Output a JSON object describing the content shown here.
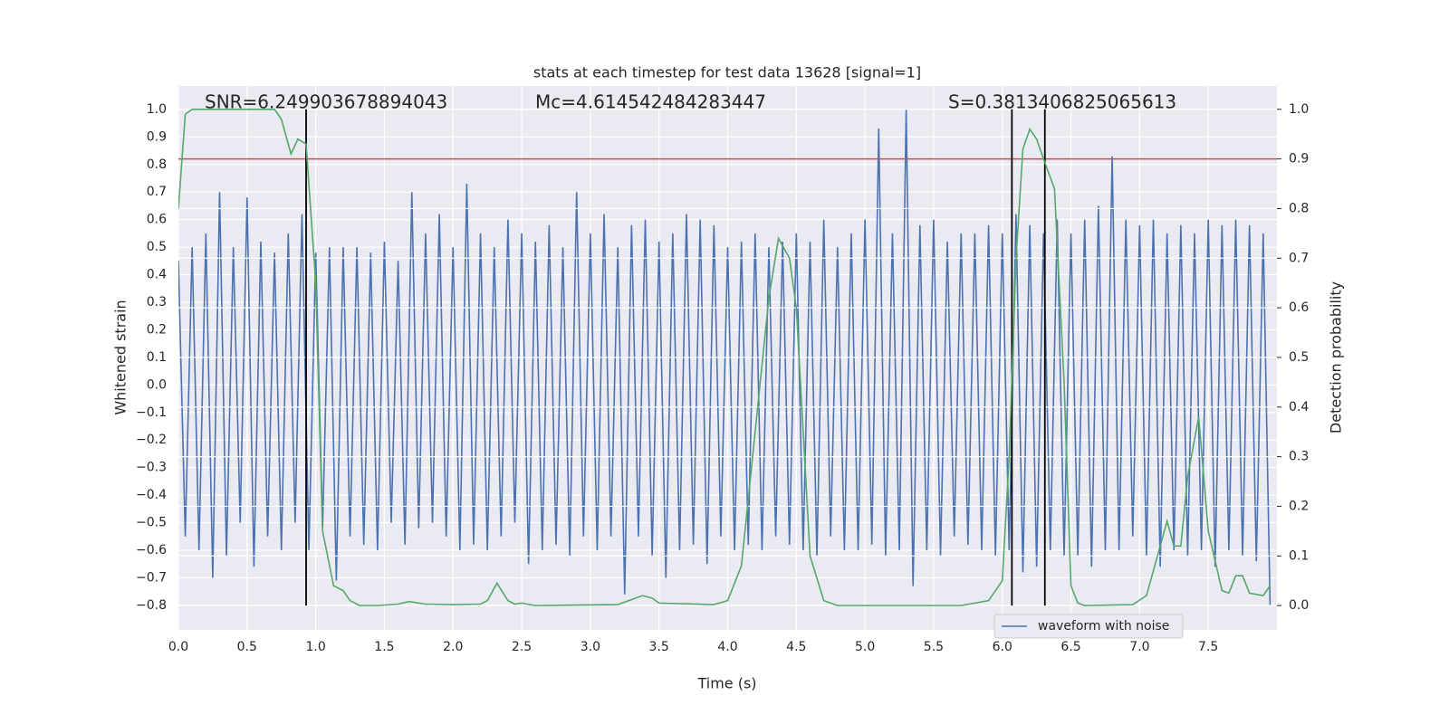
{
  "chart_data": {
    "type": "line",
    "title": "stats at each timestep for test data 13628 [signal=1]",
    "xlabel": "Time (s)",
    "ylabel": "Whitened strain",
    "y2label": "Detection probability",
    "annotations": [
      "SNR=6.249903678894043",
      "Mc=4.614542484283447",
      "S=0.3813406825065613"
    ],
    "xlim": [
      0,
      8
    ],
    "ylim": [
      -0.889,
      1.085
    ],
    "y2lim": [
      -0.049,
      1.047
    ],
    "xticks": [
      {
        "value": 0,
        "label": "0.0"
      },
      0.5,
      {
        "value": 1,
        "label": "1.0"
      },
      1.5,
      {
        "value": 2,
        "label": "2.0"
      },
      2.5,
      {
        "value": 3,
        "label": "3.0"
      },
      3.5,
      {
        "value": 4,
        "label": "4.0"
      },
      4.5,
      {
        "value": 5,
        "label": "5.0"
      },
      5.5,
      {
        "value": 6,
        "label": "6.0"
      },
      6.5,
      {
        "value": 7,
        "label": "7.0"
      },
      7.5
    ],
    "yticks": [
      {
        "value": -0.8,
        "label": "−0.8"
      },
      {
        "value": -0.7,
        "label": "−0.7"
      },
      {
        "value": -0.6,
        "label": "−0.6"
      },
      {
        "value": -0.5,
        "label": "−0.5"
      },
      {
        "value": -0.4,
        "label": "−0.4"
      },
      {
        "value": -0.3,
        "label": "−0.3"
      },
      {
        "value": -0.2,
        "label": "−0.2"
      },
      {
        "value": -0.1,
        "label": "−0.1"
      },
      {
        "value": 0,
        "label": "0.0"
      },
      0.1,
      0.2,
      0.3,
      0.4,
      0.5,
      0.6,
      0.7,
      0.8,
      0.9,
      {
        "value": 1,
        "label": "1.0"
      }
    ],
    "y2ticks": [
      {
        "value": 0,
        "label": "0.0"
      },
      0.1,
      0.2,
      0.3,
      0.4,
      0.5,
      0.6,
      0.7,
      0.8,
      0.9,
      {
        "value": 1,
        "label": "1.0"
      }
    ],
    "grid": true,
    "legend": "lower right",
    "series": [
      {
        "name": "waveform with noise",
        "color": "#4c72b0",
        "x": [
          0,
          0.05,
          0.1,
          0.15,
          0.2,
          0.25,
          0.3,
          0.35,
          0.4,
          0.45,
          0.5,
          0.55,
          0.6,
          0.65,
          0.7,
          0.75,
          0.8,
          0.85,
          0.9,
          0.95,
          1,
          1.05,
          1.1,
          1.15,
          1.2,
          1.25,
          1.3,
          1.35,
          1.4,
          1.45,
          1.5,
          1.55,
          1.6,
          1.65,
          1.7,
          1.75,
          1.8,
          1.85,
          1.9,
          1.95,
          2,
          2.05,
          2.1,
          2.15,
          2.2,
          2.25,
          2.3,
          2.35,
          2.4,
          2.45,
          2.5,
          2.55,
          2.6,
          2.65,
          2.7,
          2.75,
          2.8,
          2.85,
          2.9,
          2.95,
          3,
          3.05,
          3.1,
          3.15,
          3.2,
          3.25,
          3.3,
          3.35,
          3.4,
          3.45,
          3.5,
          3.55,
          3.6,
          3.65,
          3.7,
          3.75,
          3.8,
          3.85,
          3.9,
          3.95,
          4,
          4.05,
          4.1,
          4.15,
          4.2,
          4.25,
          4.3,
          4.35,
          4.4,
          4.45,
          4.5,
          4.55,
          4.6,
          4.65,
          4.7,
          4.75,
          4.8,
          4.85,
          4.9,
          4.95,
          5,
          5.05,
          5.1,
          5.15,
          5.2,
          5.25,
          5.3,
          5.35,
          5.4,
          5.45,
          5.5,
          5.55,
          5.6,
          5.65,
          5.7,
          5.75,
          5.8,
          5.85,
          5.9,
          5.95,
          6,
          6.05,
          6.1,
          6.15,
          6.2,
          6.25,
          6.3,
          6.35,
          6.4,
          6.45,
          6.5,
          6.55,
          6.6,
          6.65,
          6.7,
          6.75,
          6.8,
          6.85,
          6.9,
          6.95,
          7,
          7.05,
          7.1,
          7.15,
          7.2,
          7.25,
          7.3,
          7.35,
          7.4,
          7.45,
          7.5,
          7.55,
          7.6,
          7.65,
          7.7,
          7.75,
          7.8,
          7.85,
          7.9,
          7.95
        ],
        "values": [
          0.45,
          -0.55,
          0.5,
          -0.6,
          0.55,
          -0.7,
          0.7,
          -0.62,
          0.5,
          -0.5,
          0.68,
          -0.66,
          0.52,
          -0.55,
          0.48,
          -0.6,
          0.55,
          -0.5,
          0.62,
          -0.6,
          0.48,
          -0.52,
          0.5,
          -0.71,
          0.5,
          -0.55,
          0.5,
          -0.58,
          0.48,
          -0.6,
          0.52,
          -0.5,
          0.45,
          -0.58,
          0.7,
          -0.52,
          0.55,
          -0.5,
          0.62,
          -0.55,
          0.5,
          -0.6,
          0.73,
          -0.58,
          0.55,
          -0.6,
          0.5,
          -0.55,
          0.6,
          -0.5,
          0.55,
          -0.65,
          0.52,
          -0.6,
          0.58,
          -0.58,
          0.5,
          -0.62,
          0.7,
          -0.55,
          0.55,
          -0.6,
          0.62,
          -0.55,
          0.5,
          -0.76,
          0.58,
          -0.55,
          0.6,
          -0.62,
          0.52,
          -0.7,
          0.55,
          -0.6,
          0.62,
          -0.58,
          0.6,
          -0.65,
          0.58,
          -0.55,
          0.5,
          -0.6,
          0.52,
          -0.58,
          0.55,
          -0.6,
          0.5,
          -0.55,
          0.52,
          -0.58,
          0.55,
          -0.6,
          0.52,
          -0.62,
          0.6,
          -0.55,
          0.5,
          -0.6,
          0.55,
          -0.6,
          0.6,
          -0.58,
          0.93,
          -0.62,
          0.55,
          -0.6,
          1.0,
          -0.73,
          0.58,
          -0.6,
          0.6,
          -0.62,
          0.52,
          -0.55,
          0.55,
          -0.58,
          0.55,
          -0.6,
          0.58,
          -0.62,
          0.55,
          -0.6,
          0.62,
          -0.68,
          0.58,
          -0.66,
          0.55,
          -0.6,
          0.6,
          -0.62,
          0.55,
          -0.62,
          0.6,
          -0.66,
          0.65,
          -0.6,
          0.83,
          -0.6,
          0.6,
          -0.55,
          0.58,
          -0.62,
          0.6,
          -0.66,
          0.55,
          -0.6,
          0.58,
          -0.62,
          0.55,
          -0.6,
          0.6,
          -0.66,
          0.58,
          -0.6,
          0.6,
          -0.62,
          0.58,
          -0.64,
          0.55,
          -0.8
        ]
      },
      {
        "color": "#55a868",
        "axis": "y2",
        "x": [
          0,
          0.05,
          0.1,
          0.7,
          0.75,
          0.82,
          0.87,
          0.93,
          1,
          1.05,
          1.13,
          1.2,
          1.25,
          1.32,
          1.45,
          1.6,
          1.68,
          1.8,
          2,
          2.2,
          2.25,
          2.32,
          2.4,
          2.45,
          2.5,
          2.6,
          3.2,
          3.38,
          3.45,
          3.5,
          3.9,
          4,
          4.1,
          4.2,
          4.3,
          4.37,
          4.45,
          4.5,
          4.6,
          4.7,
          4.8,
          5.7,
          5.9,
          6,
          6.05,
          6.1,
          6.15,
          6.2,
          6.25,
          6.3,
          6.38,
          6.45,
          6.5,
          6.55,
          6.6,
          6.95,
          7.05,
          7.15,
          7.2,
          7.25,
          7.3,
          7.35,
          7.43,
          7.5,
          7.6,
          7.65,
          7.7,
          7.75,
          7.8,
          7.9,
          7.95
        ],
        "values": [
          0.8,
          0.99,
          1,
          1,
          0.98,
          0.91,
          0.94,
          0.93,
          0.65,
          0.15,
          0.04,
          0.03,
          0.01,
          0,
          0,
          0.003,
          0.008,
          0.003,
          0.002,
          0.003,
          0.01,
          0.045,
          0.01,
          0.003,
          0.005,
          0,
          0.002,
          0.02,
          0.015,
          0.005,
          0.002,
          0.01,
          0.08,
          0.35,
          0.62,
          0.74,
          0.7,
          0.6,
          0.1,
          0.01,
          0,
          0,
          0.01,
          0.05,
          0.3,
          0.7,
          0.92,
          0.96,
          0.94,
          0.9,
          0.84,
          0.45,
          0.04,
          0.005,
          0,
          0.002,
          0.02,
          0.12,
          0.17,
          0.12,
          0.12,
          0.26,
          0.38,
          0.15,
          0.03,
          0.025,
          0.06,
          0.06,
          0.025,
          0.02,
          0.04
        ]
      }
    ],
    "threshold": {
      "value": 0.9,
      "axis": "y2",
      "color": "#c44e52"
    },
    "vlines": {
      "x": [
        0.93,
        6.07,
        6.31
      ],
      "range": [
        0,
        1
      ],
      "axis": "y2",
      "color": "#000000"
    }
  }
}
